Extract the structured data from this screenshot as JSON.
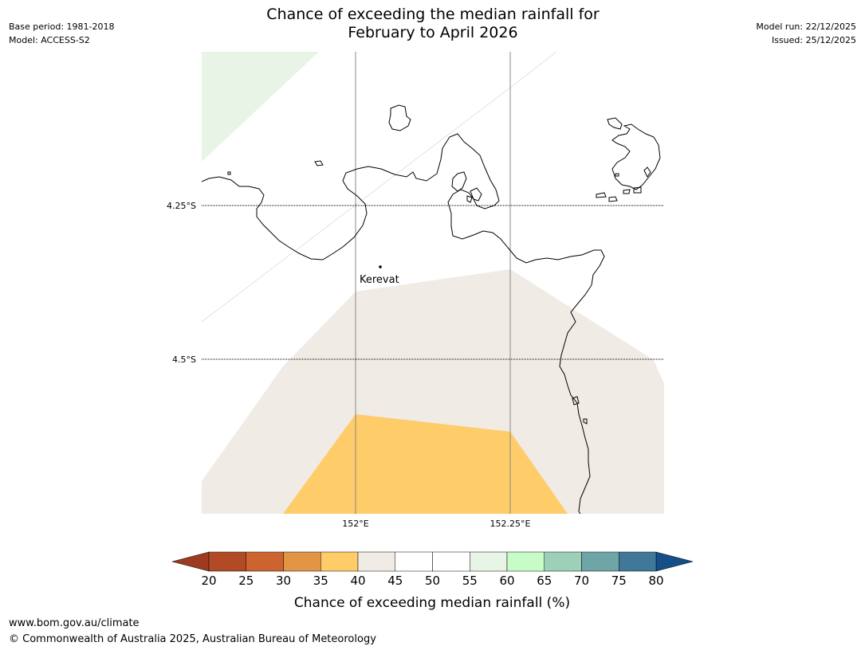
{
  "header": {
    "title_line1": "Chance of exceeding the median rainfall for",
    "title_line2": "February to April 2026",
    "base_period": "Base period: 1981-2018",
    "model": "Model: ACCESS-S2",
    "model_run": "Model run: 22/12/2025",
    "issued": "Issued: 25/12/2025"
  },
  "map": {
    "lat_labels": [
      "4.25°S",
      "4.5°S"
    ],
    "lon_labels": [
      "152°E",
      "152.25°E"
    ],
    "place": "Kerevat",
    "regions": [
      {
        "name": "green-region",
        "category": "55-60",
        "color": "#e8f4e6"
      },
      {
        "name": "beige-region",
        "category": "40-45",
        "color": "#f0ebe5"
      },
      {
        "name": "orange-region",
        "category": "35-40",
        "color": "#fecc69"
      }
    ]
  },
  "colorbar": {
    "ticks": [
      "20",
      "25",
      "30",
      "35",
      "40",
      "45",
      "50",
      "55",
      "60",
      "65",
      "70",
      "75",
      "80"
    ],
    "colors": [
      "#b24a25",
      "#cd6430",
      "#e39546",
      "#fecc69",
      "#f0ebe5",
      "#ffffff",
      "#ffffff",
      "#e8f4e6",
      "#c7fcc7",
      "#9dd0b8",
      "#6ea5a6",
      "#3f7898"
    ],
    "under_color": "#9c3b22",
    "over_color": "#154f87",
    "label": "Chance of exceeding median rainfall (%)"
  },
  "footer": {
    "url": "www.bom.gov.au/climate",
    "copyright": "© Commonwealth of Australia 2025, Australian Bureau of Meteorology"
  }
}
